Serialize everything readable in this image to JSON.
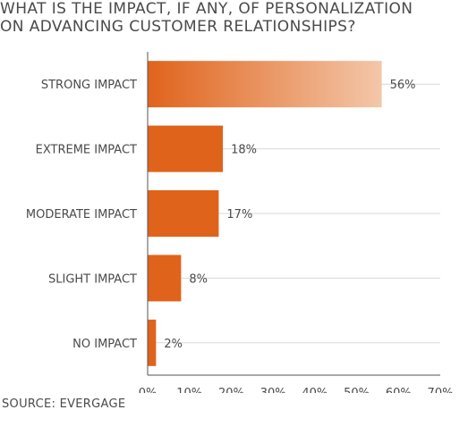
{
  "chart_data": {
    "type": "bar",
    "orientation": "horizontal",
    "title_lines": [
      "WHAT IS THE IMPACT, IF ANY, OF PERSONALIZATION",
      "ON ADVANCING CUSTOMER RELATIONSHIPS?"
    ],
    "categories": [
      "STRONG IMPACT",
      "EXTREME IMPACT",
      "MODERATE IMPACT",
      "SLIGHT IMPACT",
      "NO IMPACT"
    ],
    "values": [
      56,
      18,
      17,
      8,
      2
    ],
    "value_labels": [
      "56%",
      "18%",
      "17%",
      "8%",
      "2%"
    ],
    "xlim": [
      0,
      70
    ],
    "xticks": [
      "0%",
      "10%",
      "20%",
      "30%",
      "40%",
      "50%",
      "60%",
      "70%"
    ],
    "grid": true,
    "colors": {
      "bar": "#e0631c",
      "bar_fade": "#f3c7a9",
      "grid": "#d9d9d9",
      "axis": "#555555"
    }
  },
  "source": "SOURCE: EVERGAGE"
}
